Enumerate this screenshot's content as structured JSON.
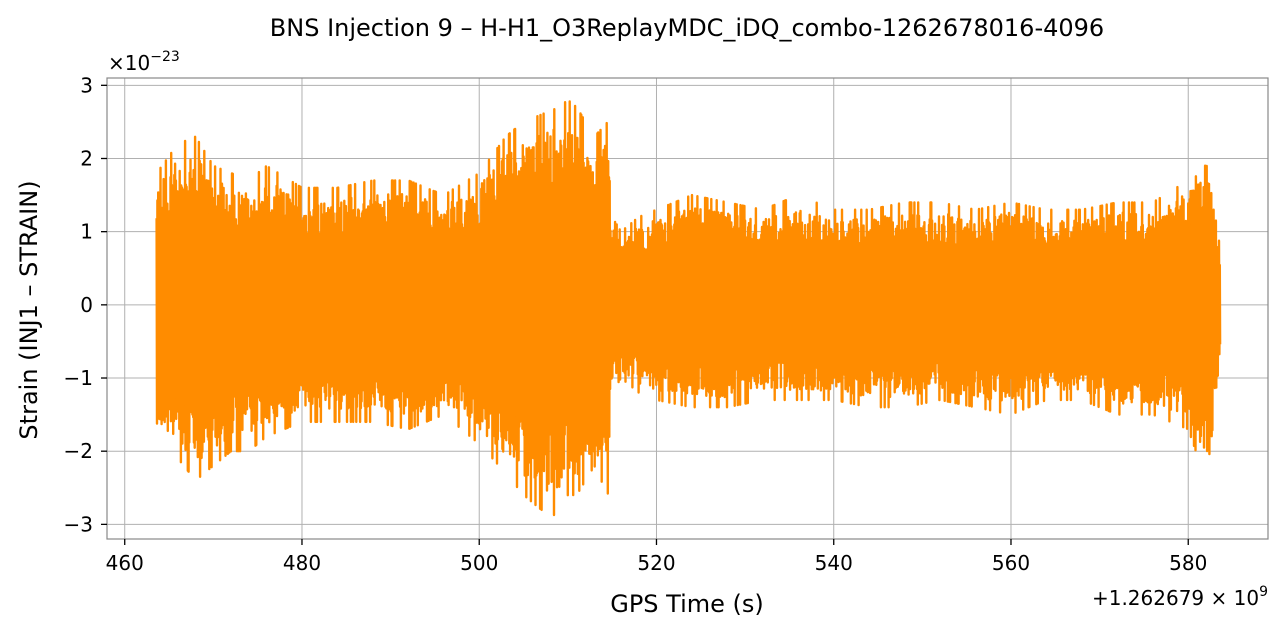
{
  "chart_data": {
    "type": "line",
    "title": "BNS Injection 9 – H-H1_O3ReplayMDC_iDQ_combo-1262678016-4096",
    "xlabel": "GPS Time (s)",
    "ylabel": "Strain (INJ1 – STRAIN)",
    "x_offset_label": "+1.262679 × 10",
    "x_offset_exp": "9",
    "y_scale_label": "×10",
    "y_scale_exp": "−23",
    "xlim": [
      458,
      589
    ],
    "ylim": [
      -3.2,
      3.1
    ],
    "x_ticks": [
      460,
      480,
      500,
      520,
      540,
      560,
      580
    ],
    "x_tick_labels": [
      "460",
      "480",
      "500",
      "520",
      "540",
      "560",
      "580"
    ],
    "y_ticks": [
      -3,
      -2,
      -1,
      0,
      1,
      2,
      3
    ],
    "y_tick_labels": [
      "−3",
      "−2",
      "−1",
      "0",
      "1",
      "2",
      "3"
    ],
    "grid": true,
    "series": [
      {
        "color": "#ff8c00",
        "x_start": 463.6,
        "x_end": 583.6,
        "envelope": {
          "x": [
            463.6,
            466,
            468,
            470,
            472,
            474,
            476,
            480,
            484,
            488,
            492,
            496,
            500,
            503,
            505,
            507,
            509,
            510,
            511,
            512,
            513,
            514.5,
            515,
            516,
            518,
            520,
            524,
            528,
            532,
            536,
            540,
            544,
            548,
            552,
            556,
            560,
            564,
            568,
            572,
            576,
            580,
            582,
            583.6
          ],
          "upper": [
            1.8,
            2.2,
            2.3,
            1.9,
            1.8,
            1.7,
            1.9,
            1.6,
            1.6,
            1.7,
            1.7,
            1.5,
            1.8,
            2.3,
            2.5,
            2.6,
            2.7,
            2.8,
            2.7,
            2.5,
            2.3,
            2.5,
            1.2,
            1.0,
            1.2,
            1.3,
            1.5,
            1.4,
            1.3,
            1.5,
            1.3,
            1.3,
            1.4,
            1.4,
            1.3,
            1.4,
            1.3,
            1.3,
            1.4,
            1.4,
            1.7,
            2.3,
            0.9
          ],
          "lower": [
            -1.8,
            -2.1,
            -2.4,
            -2.2,
            -2.0,
            -2.0,
            -1.8,
            -1.6,
            -1.6,
            -1.6,
            -1.7,
            -1.5,
            -1.9,
            -2.3,
            -2.6,
            -2.8,
            -2.9,
            -2.6,
            -2.6,
            -2.4,
            -2.2,
            -2.6,
            -1.2,
            -1.0,
            -1.2,
            -1.3,
            -1.4,
            -1.4,
            -1.3,
            -1.3,
            -1.3,
            -1.4,
            -1.4,
            -1.3,
            -1.4,
            -1.5,
            -1.3,
            -1.3,
            -1.5,
            -1.5,
            -1.7,
            -2.4,
            -0.9
          ]
        }
      }
    ]
  }
}
